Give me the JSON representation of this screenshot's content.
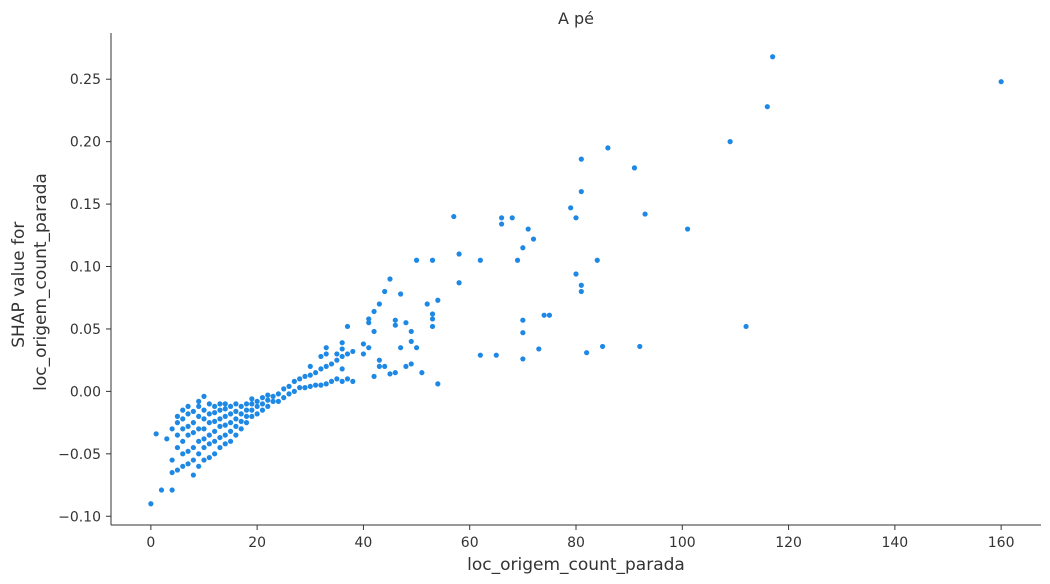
{
  "chart_data": {
    "type": "scatter",
    "title": "A pé",
    "xlabel": "loc_origem_count_parada",
    "ylabel_lines": [
      "SHAP value for",
      "loc_origem_count_parada"
    ],
    "xlim": [
      -7.5,
      167.5
    ],
    "ylim": [
      -0.107,
      0.287
    ],
    "xticks": [
      0,
      20,
      40,
      60,
      80,
      100,
      120,
      140,
      160
    ],
    "xtick_labels": [
      "0",
      "20",
      "40",
      "60",
      "80",
      "100",
      "120",
      "140",
      "160"
    ],
    "yticks": [
      -0.1,
      -0.05,
      0.0,
      0.05,
      0.1,
      0.15,
      0.2,
      0.25
    ],
    "ytick_labels": [
      "−0.10",
      "−0.05",
      "0.00",
      "0.05",
      "0.10",
      "0.15",
      "0.20",
      "0.25"
    ],
    "grid": false,
    "marker_color": "#1e88e5",
    "points": [
      [
        0,
        -0.09
      ],
      [
        1,
        -0.034
      ],
      [
        2,
        -0.079
      ],
      [
        3,
        -0.038
      ],
      [
        4,
        -0.079
      ],
      [
        4,
        -0.065
      ],
      [
        4,
        -0.055
      ],
      [
        4,
        -0.03
      ],
      [
        5,
        -0.063
      ],
      [
        5,
        -0.045
      ],
      [
        5,
        -0.035
      ],
      [
        5,
        -0.025
      ],
      [
        5,
        -0.02
      ],
      [
        6,
        -0.06
      ],
      [
        6,
        -0.05
      ],
      [
        6,
        -0.04
      ],
      [
        6,
        -0.03
      ],
      [
        6,
        -0.022
      ],
      [
        6,
        -0.015
      ],
      [
        7,
        -0.058
      ],
      [
        7,
        -0.048
      ],
      [
        7,
        -0.035
      ],
      [
        7,
        -0.028
      ],
      [
        7,
        -0.018
      ],
      [
        7,
        -0.012
      ],
      [
        8,
        -0.067
      ],
      [
        8,
        -0.055
      ],
      [
        8,
        -0.045
      ],
      [
        8,
        -0.033
      ],
      [
        8,
        -0.025
      ],
      [
        8,
        -0.016
      ],
      [
        9,
        -0.06
      ],
      [
        9,
        -0.05
      ],
      [
        9,
        -0.04
      ],
      [
        9,
        -0.03
      ],
      [
        9,
        -0.02
      ],
      [
        9,
        -0.012
      ],
      [
        9,
        -0.008
      ],
      [
        10,
        -0.055
      ],
      [
        10,
        -0.045
      ],
      [
        10,
        -0.038
      ],
      [
        10,
        -0.03
      ],
      [
        10,
        -0.022
      ],
      [
        10,
        -0.015
      ],
      [
        10,
        -0.004
      ],
      [
        11,
        -0.053
      ],
      [
        11,
        -0.042
      ],
      [
        11,
        -0.035
      ],
      [
        11,
        -0.025
      ],
      [
        11,
        -0.018
      ],
      [
        11,
        -0.01
      ],
      [
        12,
        -0.05
      ],
      [
        12,
        -0.04
      ],
      [
        12,
        -0.032
      ],
      [
        12,
        -0.024
      ],
      [
        12,
        -0.017
      ],
      [
        12,
        -0.012
      ],
      [
        13,
        -0.045
      ],
      [
        13,
        -0.037
      ],
      [
        13,
        -0.028
      ],
      [
        13,
        -0.022
      ],
      [
        13,
        -0.015
      ],
      [
        13,
        -0.01
      ],
      [
        14,
        -0.042
      ],
      [
        14,
        -0.035
      ],
      [
        14,
        -0.027
      ],
      [
        14,
        -0.02
      ],
      [
        14,
        -0.014
      ],
      [
        14,
        -0.01
      ],
      [
        15,
        -0.04
      ],
      [
        15,
        -0.032
      ],
      [
        15,
        -0.025
      ],
      [
        15,
        -0.018
      ],
      [
        15,
        -0.012
      ],
      [
        16,
        -0.035
      ],
      [
        16,
        -0.028
      ],
      [
        16,
        -0.022
      ],
      [
        16,
        -0.016
      ],
      [
        16,
        -0.01
      ],
      [
        17,
        -0.03
      ],
      [
        17,
        -0.024
      ],
      [
        17,
        -0.018
      ],
      [
        17,
        -0.012
      ],
      [
        18,
        -0.025
      ],
      [
        18,
        -0.02
      ],
      [
        18,
        -0.015
      ],
      [
        18,
        -0.01
      ],
      [
        19,
        -0.02
      ],
      [
        19,
        -0.015
      ],
      [
        19,
        -0.01
      ],
      [
        19,
        -0.006
      ],
      [
        20,
        -0.018
      ],
      [
        20,
        -0.012
      ],
      [
        20,
        -0.008
      ],
      [
        21,
        -0.015
      ],
      [
        21,
        -0.01
      ],
      [
        21,
        -0.005
      ],
      [
        22,
        -0.012
      ],
      [
        22,
        -0.007
      ],
      [
        22,
        -0.003
      ],
      [
        23,
        -0.008
      ],
      [
        23,
        -0.004
      ],
      [
        24,
        -0.008
      ],
      [
        24,
        -0.002
      ],
      [
        25,
        -0.005
      ],
      [
        25,
        0.002
      ],
      [
        26,
        -0.002
      ],
      [
        26,
        0.004
      ],
      [
        27,
        0.0
      ],
      [
        27,
        0.008
      ],
      [
        28,
        0.003
      ],
      [
        28,
        0.01
      ],
      [
        29,
        0.003
      ],
      [
        29,
        0.012
      ],
      [
        30,
        0.004
      ],
      [
        30,
        0.013
      ],
      [
        30,
        0.02
      ],
      [
        31,
        0.005
      ],
      [
        31,
        0.015
      ],
      [
        32,
        0.005
      ],
      [
        32,
        0.018
      ],
      [
        32,
        0.028
      ],
      [
        33,
        0.006
      ],
      [
        33,
        0.02
      ],
      [
        33,
        0.03
      ],
      [
        33,
        0.035
      ],
      [
        34,
        0.008
      ],
      [
        34,
        0.022
      ],
      [
        35,
        0.01
      ],
      [
        35,
        0.025
      ],
      [
        35,
        0.03
      ],
      [
        36,
        0.008
      ],
      [
        36,
        0.018
      ],
      [
        36,
        0.028
      ],
      [
        36,
        0.034
      ],
      [
        36,
        0.039
      ],
      [
        37,
        0.01
      ],
      [
        37,
        0.03
      ],
      [
        37,
        0.052
      ],
      [
        38,
        0.008
      ],
      [
        38,
        0.032
      ],
      [
        40,
        0.03
      ],
      [
        40,
        0.038
      ],
      [
        41,
        0.035
      ],
      [
        41,
        0.055
      ],
      [
        41,
        0.058
      ],
      [
        42,
        0.012
      ],
      [
        42,
        0.048
      ],
      [
        42,
        0.064
      ],
      [
        43,
        0.02
      ],
      [
        43,
        0.025
      ],
      [
        43,
        0.07
      ],
      [
        44,
        0.02
      ],
      [
        44,
        0.08
      ],
      [
        45,
        0.09
      ],
      [
        45,
        0.014
      ],
      [
        46,
        0.015
      ],
      [
        46,
        0.053
      ],
      [
        46,
        0.057
      ],
      [
        47,
        0.035
      ],
      [
        47,
        0.078
      ],
      [
        48,
        0.02
      ],
      [
        48,
        0.055
      ],
      [
        49,
        0.022
      ],
      [
        49,
        0.048
      ],
      [
        49,
        0.04
      ],
      [
        50,
        0.105
      ],
      [
        50,
        0.035
      ],
      [
        51,
        0.015
      ],
      [
        52,
        0.07
      ],
      [
        53,
        0.105
      ],
      [
        53,
        0.062
      ],
      [
        53,
        0.058
      ],
      [
        53,
        0.052
      ],
      [
        54,
        0.073
      ],
      [
        54,
        0.006
      ],
      [
        57,
        0.14
      ],
      [
        58,
        0.11
      ],
      [
        58,
        0.087
      ],
      [
        62,
        0.105
      ],
      [
        62,
        0.029
      ],
      [
        65,
        0.029
      ],
      [
        66,
        0.139
      ],
      [
        66,
        0.134
      ],
      [
        68,
        0.139
      ],
      [
        69,
        0.105
      ],
      [
        70,
        0.115
      ],
      [
        70,
        0.057
      ],
      [
        70,
        0.047
      ],
      [
        70,
        0.026
      ],
      [
        71,
        0.13
      ],
      [
        72,
        0.122
      ],
      [
        73,
        0.034
      ],
      [
        74,
        0.061
      ],
      [
        75,
        0.061
      ],
      [
        79,
        0.147
      ],
      [
        80,
        0.139
      ],
      [
        80,
        0.094
      ],
      [
        81,
        0.186
      ],
      [
        81,
        0.16
      ],
      [
        81,
        0.085
      ],
      [
        81,
        0.08
      ],
      [
        82,
        0.031
      ],
      [
        84,
        0.105
      ],
      [
        85,
        0.036
      ],
      [
        86,
        0.195
      ],
      [
        91,
        0.179
      ],
      [
        92,
        0.036
      ],
      [
        93,
        0.142
      ],
      [
        101,
        0.13
      ],
      [
        109,
        0.2
      ],
      [
        112,
        0.052
      ],
      [
        116,
        0.228
      ],
      [
        117,
        0.268
      ],
      [
        160,
        0.248
      ]
    ]
  }
}
